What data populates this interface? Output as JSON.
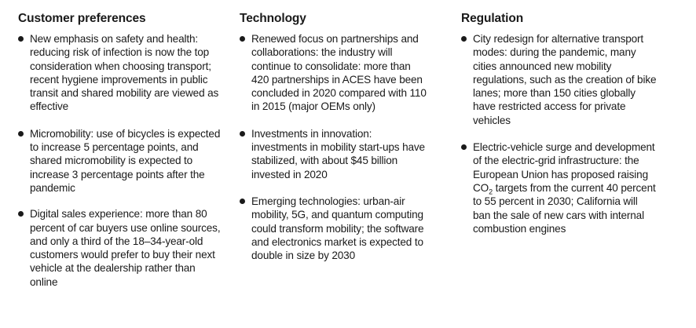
{
  "columns": [
    {
      "heading": "Customer preferences",
      "items": [
        "New emphasis on safety and health: reducing risk of infection is now the top consideration when choosing transport; recent hygiene improvements in public transit and shared mobility are viewed as effective",
        "Micromobility: use of bicycles is expected to increase 5 percentage points, and shared micromobility is expected to increase 3 percentage points after the pandemic",
        "Digital sales experience: more than 80 percent of car buyers use online sources, and only a third of the 18–34-year-old customers would prefer to buy their next vehicle at the dealership rather than online"
      ]
    },
    {
      "heading": "Technology",
      "items": [
        "Renewed focus on partnerships and collaborations: the industry will continue to consolidate: more than 420 partnerships in ACES have been concluded in 2020 compared with 110 in 2015 (major OEMs only)",
        "Investments in innovation: investments in mobility start-ups have stabilized, with about $45 billion invested in 2020",
        "Emerging technologies: urban-air mobility, 5G, and quantum computing could transform mobility; the software and electronics market is expected to double in size by 2030"
      ]
    },
    {
      "heading": "Regulation",
      "items": [
        "City redesign for alternative transport modes: during the pandemic, many cities announced new mobility regulations, such as the creation of bike lanes; more than 150 cities globally have restricted access for private vehicles",
        {
          "before": "Electric-vehicle surge and development of the electric-grid infrastructure: the European Union has proposed raising CO",
          "sub": "2",
          "after": " targets from the current 40 percent to 55 percent in 2030; California will ban the sale of new cars with internal combustion engines"
        }
      ]
    }
  ]
}
